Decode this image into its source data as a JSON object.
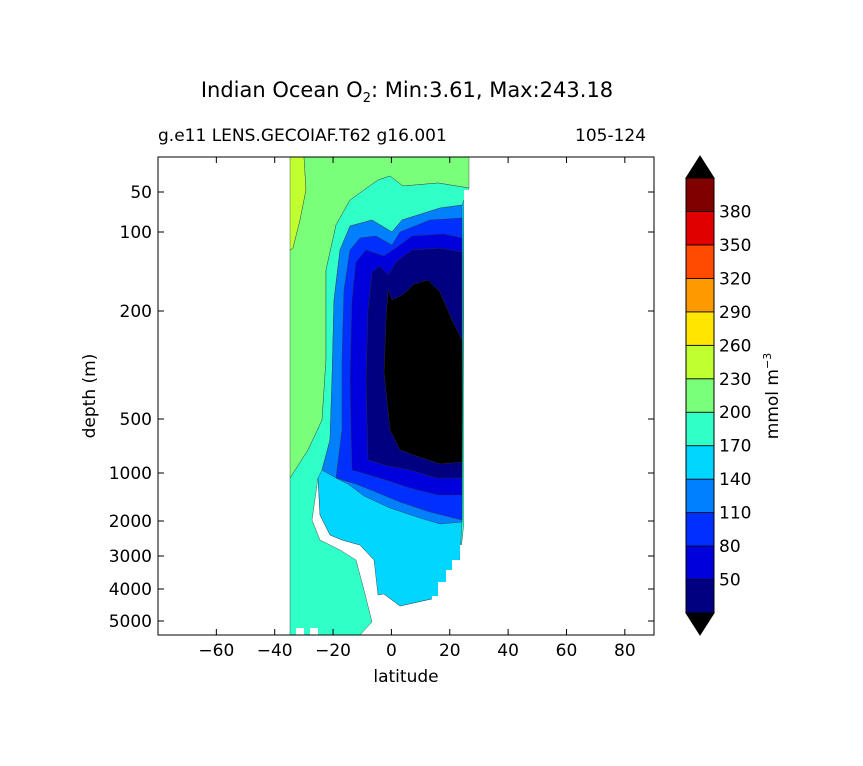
{
  "figure": {
    "title": "Indian Ocean O",
    "title_sub": "2",
    "title_stats": ": Min:3.61, Max:243.18",
    "subtitle_left": "g.e11 LENS.GECOIAF.T62 g16.001",
    "subtitle_right": "105-124"
  },
  "chart_data": {
    "type": "heatmap",
    "xlabel": "latitude",
    "ylabel": "depth (m)",
    "xlim": [
      -80,
      90
    ],
    "x_ticks": [
      -60,
      -40,
      -20,
      0,
      20,
      40,
      60,
      80
    ],
    "x_tick_labels": [
      "−60",
      "−40",
      "−20",
      "0",
      "20",
      "40",
      "60",
      "80"
    ],
    "y_scale": "stretched depth (upper ocean expanded)",
    "y_ticks": [
      50,
      100,
      200,
      500,
      1000,
      2000,
      3000,
      4000,
      5000
    ],
    "y_tick_labels": [
      "50",
      "100",
      "200",
      "500",
      "1000",
      "2000",
      "3000",
      "4000",
      "5000"
    ],
    "data_extent_latitude": [
      -34,
      26
    ],
    "colorbar": {
      "label": "mmol m",
      "label_sup": "−3",
      "levels": [
        50,
        80,
        110,
        140,
        170,
        200,
        230,
        260,
        290,
        320,
        350,
        380
      ],
      "tick_labels": [
        "50",
        "80",
        "110",
        "140",
        "170",
        "200",
        "230",
        "260",
        "290",
        "320",
        "350",
        "380"
      ],
      "colors": [
        "#000080",
        "#0000dd",
        "#0030ff",
        "#0080ff",
        "#00d6ff",
        "#30ffc8",
        "#7aff7a",
        "#c0ff30",
        "#ffe600",
        "#ff9900",
        "#ff4a00",
        "#e00000",
        "#800000"
      ],
      "extend": "both",
      "extend_color": "#000000"
    },
    "contours": [
      {
        "level": "<20",
        "color": "#000000"
      },
      {
        "level": "20-50",
        "color": "#000080"
      },
      {
        "level": "50-80",
        "color": "#0000dd"
      },
      {
        "level": "80-110",
        "color": "#0030ff"
      },
      {
        "level": "110-140",
        "color": "#0080ff"
      },
      {
        "level": "140-170",
        "color": "#00d6ff"
      },
      {
        "level": "170-200",
        "color": "#30ffc8"
      },
      {
        "level": "200-230",
        "color": "#7aff7a"
      },
      {
        "level": "230-260",
        "color": "#c0ff30"
      }
    ],
    "min_value": 3.61,
    "max_value": 243.18
  }
}
